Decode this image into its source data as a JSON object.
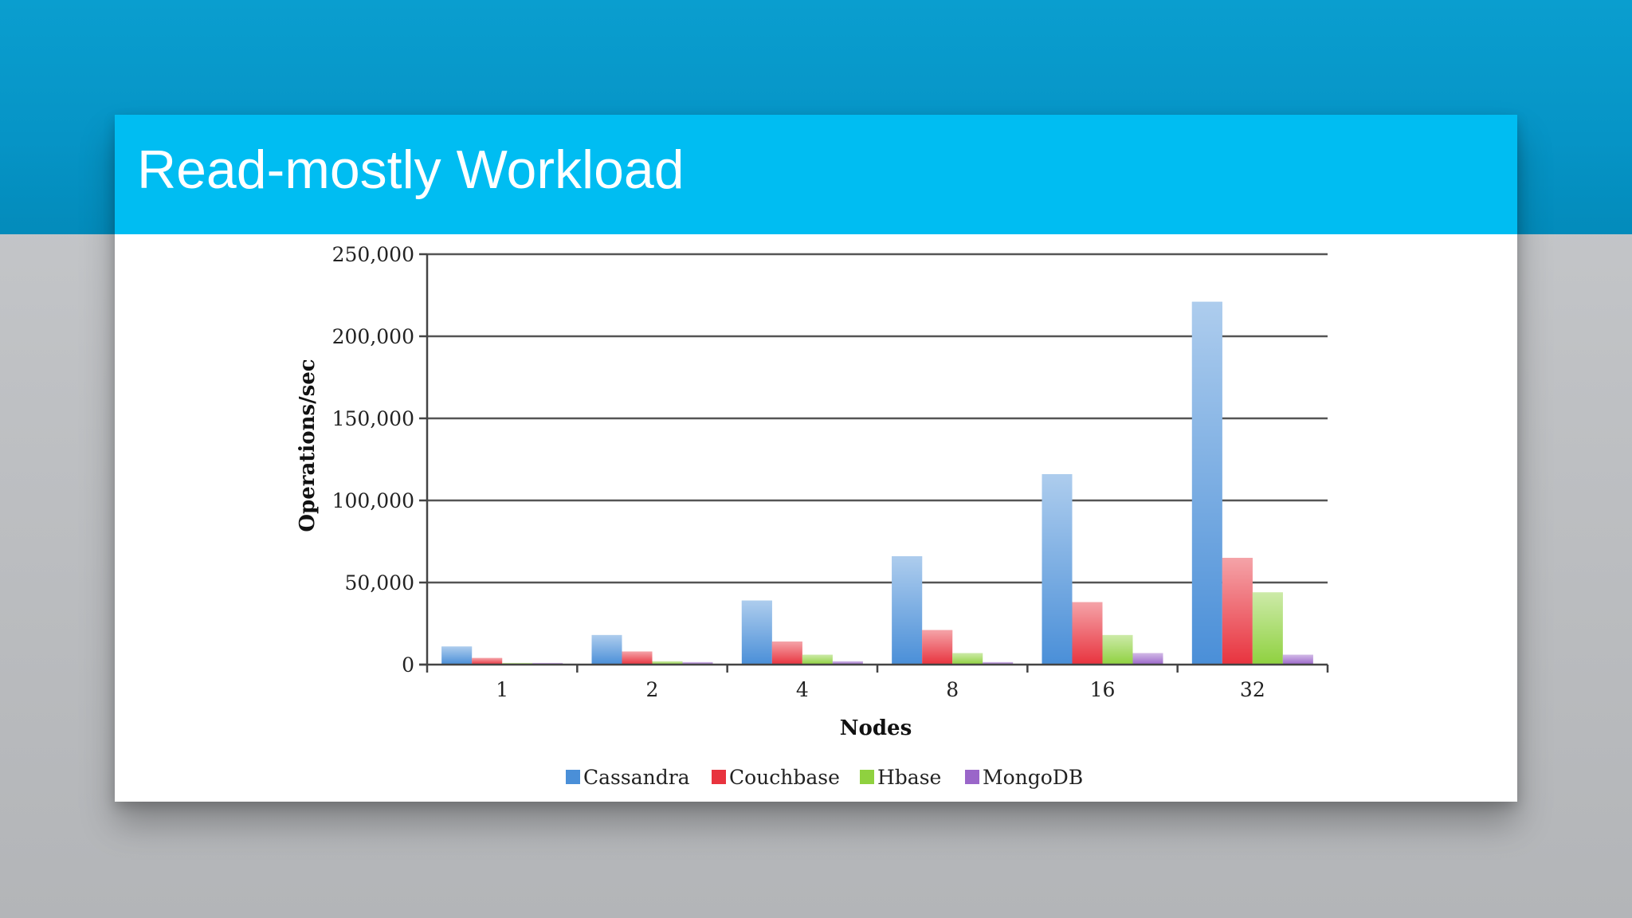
{
  "slide": {
    "title": "Read-mostly Workload"
  },
  "colors": {
    "background_top": "#0694c6",
    "title_bar": "#00bdf2",
    "card": "#ffffff"
  },
  "chart_data": {
    "type": "bar",
    "xlabel": "Nodes",
    "ylabel": "Operations/sec",
    "categories": [
      "1",
      "2",
      "4",
      "8",
      "16",
      "32"
    ],
    "ylim": [
      0,
      250000
    ],
    "yticks": [
      0,
      50000,
      100000,
      150000,
      200000,
      250000
    ],
    "ytick_labels": [
      "0",
      "50,000",
      "100,000",
      "150,000",
      "200,000",
      "250,000"
    ],
    "grid": true,
    "legend_position": "bottom",
    "series": [
      {
        "name": "Cassandra",
        "color": "#4a8fd8",
        "values": [
          11000,
          18000,
          39000,
          66000,
          116000,
          221000
        ]
      },
      {
        "name": "Couchbase",
        "color": "#e8333e",
        "values": [
          4000,
          8000,
          14000,
          21000,
          38000,
          65000
        ]
      },
      {
        "name": "Hbase",
        "color": "#8fd13f",
        "values": [
          1000,
          2000,
          6000,
          7000,
          18000,
          44000
        ]
      },
      {
        "name": "MongoDB",
        "color": "#9a66c9",
        "values": [
          1000,
          1500,
          2000,
          1500,
          7000,
          6000
        ]
      }
    ]
  }
}
